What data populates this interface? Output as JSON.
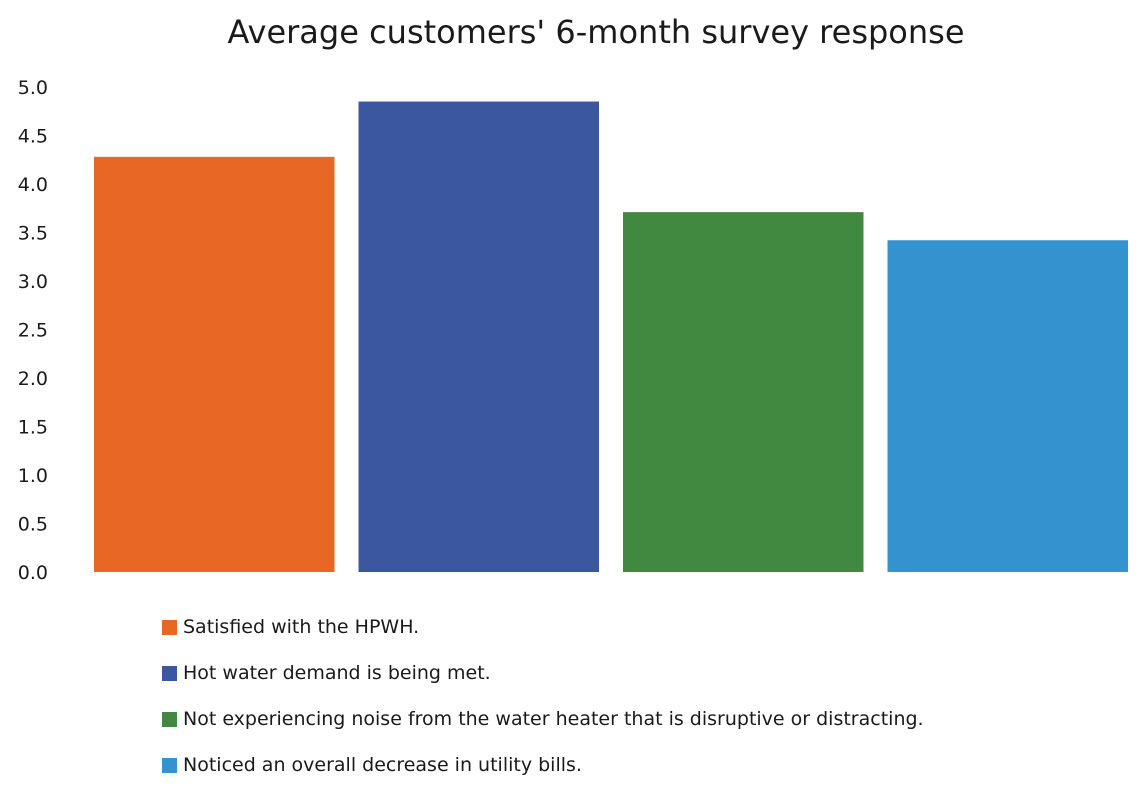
{
  "chart_data": {
    "type": "bar",
    "title": "Average customers' 6-month survey response",
    "categories": [
      "Satisfied with the HPWH.",
      "Hot water demand is being met.",
      "Not experiencing noise from the water heater that is disruptive or distracting.",
      "Noticed an overall decrease in utility bills."
    ],
    "values": [
      4.28,
      4.85,
      3.71,
      3.42
    ],
    "colors": [
      "#e96725",
      "#3a57a0",
      "#418940",
      "#3492cf"
    ],
    "ylim": [
      0,
      5
    ],
    "yticks": [
      "0.0",
      "0.5",
      "1.0",
      "1.5",
      "2.0",
      "2.5",
      "3.0",
      "3.5",
      "4.0",
      "4.5",
      "5.0"
    ],
    "grid": false,
    "legend_position": "bottom"
  }
}
